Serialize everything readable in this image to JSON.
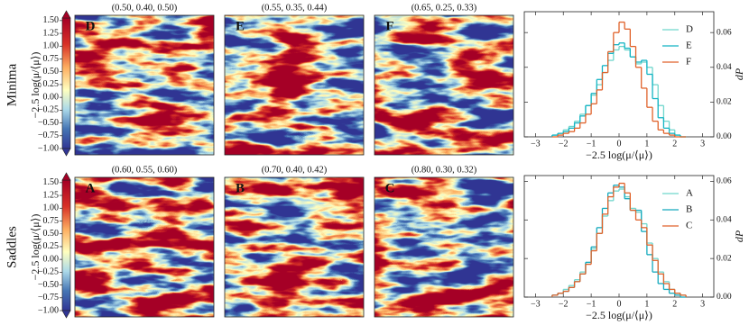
{
  "figure": {
    "rows": [
      {
        "label": "Minima",
        "panels": [
          {
            "letter": "D",
            "params": "(0.50, 0.40, 0.50)"
          },
          {
            "letter": "E",
            "params": "(0.55, 0.35, 0.44)"
          },
          {
            "letter": "F",
            "params": "(0.65, 0.25, 0.33)"
          }
        ]
      },
      {
        "label": "Saddles",
        "panels": [
          {
            "letter": "A",
            "params": "(0.60, 0.55, 0.60)"
          },
          {
            "letter": "B",
            "params": "(0.70, 0.40, 0.42)"
          },
          {
            "letter": "C",
            "params": "(0.80, 0.30, 0.32)"
          }
        ]
      }
    ],
    "colorbar": {
      "label": "−2.5 log(μ/⟨μ⟩)",
      "lim": [
        -1.0,
        1.55
      ],
      "ticks": [
        {
          "value": 1.5,
          "label": "1.50"
        },
        {
          "value": 1.25,
          "label": "1.25"
        },
        {
          "value": 1.0,
          "label": "1.00"
        },
        {
          "value": 0.75,
          "label": "0.75"
        },
        {
          "value": 0.5,
          "label": "0.50"
        },
        {
          "value": 0.25,
          "label": "0.25"
        },
        {
          "value": 0,
          "label": "0.00"
        },
        {
          "value": -0.25,
          "label": "−0.25"
        },
        {
          "value": -0.5,
          "label": "−0.50"
        },
        {
          "value": -0.75,
          "label": "−0.75"
        },
        {
          "value": -1.0,
          "label": "−1.00"
        }
      ]
    }
  },
  "chart_data": [
    {
      "type": "histogram",
      "xlabel": "−2.5 log(μ/⟨μ⟩)",
      "ylabel": "dP",
      "legend": "upper right",
      "xlim": [
        -3.4,
        3.4
      ],
      "ylim": [
        0,
        0.072
      ],
      "xticks": [
        {
          "value": -3,
          "label": "−3"
        },
        {
          "value": -2,
          "label": "−2"
        },
        {
          "value": -1,
          "label": "−1"
        },
        0,
        1,
        2,
        3
      ],
      "yticks": [
        {
          "value": 0,
          "label": "0.00"
        },
        {
          "value": 0.02,
          "label": "0.02"
        },
        {
          "value": 0.04,
          "label": "0.04"
        },
        {
          "value": 0.06,
          "label": "0.06"
        }
      ],
      "bins": [
        -2.4,
        -2.2,
        -2.0,
        -1.8,
        -1.6,
        -1.4,
        -1.2,
        -1.0,
        -0.8,
        -0.6,
        -0.4,
        -0.2,
        0,
        0.2,
        0.4,
        0.6,
        0.8,
        1.0,
        1.2,
        1.4,
        1.6,
        1.8,
        2.0,
        2.2,
        2.4
      ],
      "series": [
        {
          "name": "D",
          "color": "#6fd6cc",
          "values": [
            0.001,
            0.002,
            0.004,
            0.006,
            0.009,
            0.013,
            0.018,
            0.024,
            0.03,
            0.037,
            0.044,
            0.05,
            0.052,
            0.05,
            0.046,
            0.042,
            0.043,
            0.04,
            0.03,
            0.018,
            0.009,
            0.004,
            0.001,
            0
          ]
        },
        {
          "name": "E",
          "color": "#14b4c4",
          "values": [
            0.001,
            0.002,
            0.003,
            0.005,
            0.008,
            0.012,
            0.018,
            0.025,
            0.033,
            0.041,
            0.048,
            0.053,
            0.054,
            0.051,
            0.046,
            0.043,
            0.044,
            0.036,
            0.022,
            0.011,
            0.005,
            0.002,
            0.001,
            0
          ]
        },
        {
          "name": "F",
          "color": "#e0622a",
          "values": [
            0,
            0.001,
            0.002,
            0.003,
            0.005,
            0.008,
            0.013,
            0.019,
            0.027,
            0.037,
            0.049,
            0.06,
            0.066,
            0.062,
            0.052,
            0.04,
            0.028,
            0.017,
            0.009,
            0.004,
            0.002,
            0.001,
            0,
            0
          ]
        }
      ]
    },
    {
      "type": "histogram",
      "xlabel": "−2.5 log(μ/⟨μ⟩)",
      "ylabel": "dP",
      "legend": "upper right",
      "xlim": [
        -3.4,
        3.4
      ],
      "ylim": [
        0,
        0.063
      ],
      "xticks": [
        {
          "value": -3,
          "label": "−3"
        },
        {
          "value": -2,
          "label": "−2"
        },
        {
          "value": -1,
          "label": "−1"
        },
        0,
        1,
        2,
        3
      ],
      "yticks": [
        {
          "value": 0,
          "label": "0.00"
        },
        {
          "value": 0.02,
          "label": "0.02"
        },
        {
          "value": 0.04,
          "label": "0.04"
        },
        {
          "value": 0.06,
          "label": "0.06"
        }
      ],
      "bins": [
        -2.4,
        -2.2,
        -2.0,
        -1.8,
        -1.6,
        -1.4,
        -1.2,
        -1.0,
        -0.8,
        -0.6,
        -0.4,
        -0.2,
        0,
        0.2,
        0.4,
        0.6,
        0.8,
        1.0,
        1.2,
        1.4,
        1.6,
        1.8,
        2.0,
        2.2,
        2.4
      ],
      "series": [
        {
          "name": "A",
          "color": "#6fd6cc",
          "values": [
            0.001,
            0.002,
            0.004,
            0.006,
            0.009,
            0.013,
            0.018,
            0.025,
            0.033,
            0.042,
            0.05,
            0.055,
            0.056,
            0.052,
            0.046,
            0.044,
            0.038,
            0.028,
            0.02,
            0.013,
            0.008,
            0.004,
            0.002,
            0.001
          ]
        },
        {
          "name": "B",
          "color": "#14a9bd",
          "values": [
            0.001,
            0.002,
            0.003,
            0.005,
            0.008,
            0.012,
            0.018,
            0.026,
            0.036,
            0.046,
            0.054,
            0.058,
            0.057,
            0.051,
            0.045,
            0.045,
            0.034,
            0.022,
            0.013,
            0.007,
            0.004,
            0.002,
            0.001,
            0
          ]
        },
        {
          "name": "C",
          "color": "#e0622a",
          "values": [
            0.001,
            0.002,
            0.003,
            0.005,
            0.008,
            0.012,
            0.017,
            0.024,
            0.033,
            0.043,
            0.052,
            0.057,
            0.059,
            0.054,
            0.045,
            0.04,
            0.036,
            0.027,
            0.019,
            0.012,
            0.007,
            0.004,
            0.002,
            0.001
          ]
        }
      ]
    }
  ]
}
